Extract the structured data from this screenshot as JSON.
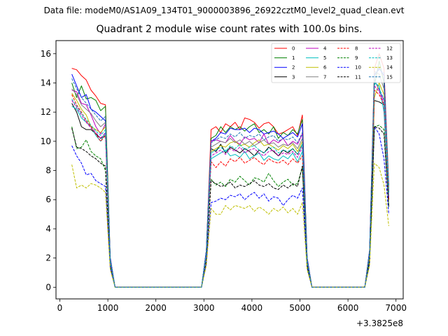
{
  "figure": {
    "suptitle": "Data file: modeM0/AS1A09_134T01_9000003896_26922cztM0_level2_quad_clean.evt"
  },
  "chart_data": {
    "type": "line",
    "title": "Quadrant 2 module wise count rates with 100.0s bins.",
    "xlabel": "",
    "ylabel": "",
    "x_offset_label": "+3.3825e8",
    "xlim": [
      -80,
      7150
    ],
    "ylim": [
      -0.8,
      16.9
    ],
    "x_ticks": [
      0,
      1000,
      2000,
      3000,
      4000,
      5000,
      6000,
      7000
    ],
    "x_tick_labels": [
      "0",
      "1000",
      "2000",
      "3000",
      "4000",
      "5000",
      "6000",
      "7000"
    ],
    "y_ticks": [
      0,
      2,
      4,
      6,
      8,
      10,
      12,
      14,
      16
    ],
    "y_tick_labels": [
      "0",
      "2",
      "4",
      "6",
      "8",
      "10",
      "12",
      "14",
      "16"
    ],
    "legend_position": "top-right",
    "legend_columns": 4,
    "x": [
      250,
      350,
      450,
      550,
      650,
      750,
      850,
      950,
      1050,
      1150,
      2950,
      3050,
      3150,
      3250,
      3350,
      3450,
      3550,
      3650,
      3750,
      3850,
      3950,
      4050,
      4150,
      4250,
      4350,
      4450,
      4550,
      4650,
      4750,
      4850,
      4950,
      5050,
      5150,
      5250,
      6350,
      6450,
      6550,
      6650,
      6750,
      6850
    ],
    "series": [
      {
        "name": "0",
        "color": "#ff0000",
        "dashed": false,
        "values": [
          15.0,
          14.9,
          14.5,
          14.2,
          13.5,
          13.1,
          12.6,
          12.5,
          2.0,
          0.0,
          0.0,
          2.5,
          10.8,
          11.0,
          10.6,
          11.2,
          11.0,
          11.3,
          10.8,
          11.6,
          11.5,
          11.3,
          10.9,
          11.2,
          11.3,
          11.0,
          10.5,
          10.6,
          10.8,
          11.0,
          10.4,
          11.8,
          2.0,
          0.0,
          0.0,
          2.5,
          15.0,
          16.0,
          15.0,
          7.0
        ]
      },
      {
        "name": "1",
        "color": "#008000",
        "dashed": false,
        "values": [
          14.0,
          13.0,
          13.8,
          12.9,
          13.0,
          12.8,
          12.1,
          12.4,
          2.0,
          0.0,
          0.0,
          2.5,
          10.2,
          10.4,
          11.0,
          10.6,
          11.0,
          10.8,
          11.0,
          10.7,
          11.0,
          11.2,
          10.6,
          10.8,
          10.5,
          11.0,
          10.2,
          10.6,
          10.4,
          10.8,
          10.5,
          11.5,
          2.0,
          0.0,
          0.0,
          2.5,
          13.8,
          15.5,
          14.0,
          6.8
        ]
      },
      {
        "name": "2",
        "color": "#0000ff",
        "dashed": false,
        "values": [
          14.6,
          13.8,
          13.0,
          13.2,
          12.2,
          12.0,
          11.7,
          11.4,
          2.0,
          0.0,
          0.0,
          2.5,
          10.0,
          10.2,
          10.6,
          10.5,
          10.9,
          10.8,
          10.8,
          10.9,
          10.6,
          10.9,
          10.8,
          10.5,
          10.6,
          10.7,
          10.5,
          10.2,
          10.4,
          10.6,
          10.3,
          11.2,
          2.0,
          0.0,
          0.0,
          2.5,
          14.5,
          15.0,
          14.5,
          6.5
        ]
      },
      {
        "name": "3",
        "color": "#000000",
        "dashed": false,
        "values": [
          12.6,
          12.0,
          11.0,
          10.8,
          10.8,
          10.5,
          10.2,
          10.4,
          1.8,
          0.0,
          0.0,
          2.2,
          9.5,
          9.3,
          9.8,
          9.2,
          9.6,
          9.4,
          9.2,
          9.5,
          9.3,
          9.0,
          9.4,
          9.2,
          9.6,
          9.3,
          9.0,
          9.4,
          9.2,
          9.5,
          9.1,
          9.8,
          1.8,
          0.0,
          0.0,
          2.2,
          12.8,
          12.7,
          12.5,
          6.5
        ]
      },
      {
        "name": "4",
        "color": "#bf00bf",
        "dashed": false,
        "values": [
          13.5,
          13.4,
          12.6,
          12.5,
          11.8,
          11.0,
          10.5,
          11.2,
          1.8,
          0.0,
          0.0,
          2.3,
          10.0,
          10.1,
          10.0,
          9.9,
          10.4,
          10.0,
          9.8,
          10.3,
          10.1,
          10.2,
          9.9,
          10.5,
          9.8,
          10.1,
          9.9,
          10.2,
          9.7,
          10.0,
          9.8,
          10.5,
          1.8,
          0.0,
          0.0,
          2.3,
          14.2,
          13.5,
          12.8,
          6.2
        ]
      },
      {
        "name": "5",
        "color": "#00bfbf",
        "dashed": false,
        "values": [
          12.4,
          12.2,
          11.6,
          11.3,
          11.0,
          10.4,
          10.0,
          10.6,
          1.7,
          0.0,
          0.0,
          2.2,
          8.8,
          9.0,
          9.2,
          9.4,
          9.0,
          9.1,
          8.9,
          9.3,
          8.8,
          9.0,
          9.2,
          8.7,
          9.0,
          8.8,
          8.7,
          9.0,
          8.8,
          9.2,
          8.6,
          9.3,
          1.7,
          0.0,
          0.0,
          2.2,
          14.0,
          13.8,
          12.0,
          6.0
        ]
      },
      {
        "name": "6",
        "color": "#bfbf00",
        "dashed": false,
        "values": [
          13.3,
          12.8,
          12.2,
          11.8,
          11.0,
          10.8,
          10.6,
          11.0,
          1.8,
          0.0,
          0.0,
          2.3,
          9.3,
          9.5,
          9.7,
          9.6,
          9.9,
          10.0,
          9.7,
          9.8,
          9.6,
          9.9,
          10.1,
          9.7,
          9.8,
          9.6,
          9.4,
          9.7,
          9.5,
          9.8,
          9.3,
          10.0,
          1.8,
          0.0,
          0.0,
          2.3,
          13.0,
          14.0,
          13.2,
          6.8
        ]
      },
      {
        "name": "7",
        "color": "#808080",
        "dashed": false,
        "values": [
          13.6,
          13.2,
          12.5,
          12.2,
          11.9,
          11.4,
          11.0,
          11.3,
          1.8,
          0.0,
          0.0,
          2.3,
          9.6,
          9.8,
          10.0,
          9.9,
          10.2,
          9.9,
          10.1,
          9.8,
          10.0,
          9.7,
          9.9,
          10.1,
          9.8,
          9.9,
          9.6,
          9.8,
          9.7,
          9.9,
          9.5,
          10.2,
          1.8,
          0.0,
          0.0,
          2.3,
          14.8,
          14.6,
          13.6,
          6.6
        ]
      },
      {
        "name": "8",
        "color": "#ff0000",
        "dashed": true,
        "values": [
          13.2,
          12.5,
          12.0,
          11.4,
          11.0,
          10.5,
          10.0,
          10.4,
          1.7,
          0.0,
          0.0,
          2.2,
          8.6,
          8.2,
          8.6,
          8.3,
          8.8,
          8.6,
          8.9,
          8.5,
          8.7,
          8.9,
          8.6,
          8.4,
          8.8,
          8.6,
          8.5,
          8.7,
          8.4,
          8.8,
          8.5,
          9.0,
          1.7,
          0.0,
          0.0,
          2.2,
          13.5,
          13.2,
          12.5,
          6.0
        ]
      },
      {
        "name": "9",
        "color": "#008000",
        "dashed": true,
        "values": [
          11.0,
          9.5,
          9.6,
          10.1,
          9.3,
          9.0,
          8.8,
          8.0,
          1.5,
          0.0,
          0.0,
          1.8,
          7.4,
          7.0,
          7.2,
          6.9,
          7.4,
          7.2,
          7.6,
          7.3,
          7.0,
          7.5,
          7.4,
          7.2,
          7.8,
          7.3,
          6.9,
          7.2,
          7.4,
          7.0,
          7.1,
          8.2,
          1.5,
          0.0,
          0.0,
          1.8,
          11.0,
          11.1,
          10.8,
          5.5
        ]
      },
      {
        "name": "10",
        "color": "#0000ff",
        "dashed": true,
        "values": [
          9.7,
          9.0,
          8.5,
          7.7,
          7.8,
          7.3,
          7.1,
          6.9,
          1.3,
          0.0,
          0.0,
          1.6,
          5.8,
          5.9,
          6.1,
          6.0,
          6.3,
          6.2,
          6.4,
          6.0,
          6.3,
          6.5,
          6.1,
          6.4,
          5.9,
          6.2,
          6.1,
          5.6,
          6.0,
          6.3,
          6.1,
          6.8,
          1.3,
          0.0,
          0.0,
          1.6,
          11.0,
          10.5,
          8.8,
          5.0
        ]
      },
      {
        "name": "11",
        "color": "#000000",
        "dashed": true,
        "values": [
          10.9,
          9.6,
          9.5,
          9.3,
          9.0,
          8.8,
          8.5,
          8.3,
          1.5,
          0.0,
          0.0,
          1.8,
          7.3,
          7.1,
          6.9,
          7.0,
          7.2,
          6.8,
          7.0,
          6.9,
          7.1,
          7.3,
          7.0,
          6.9,
          7.1,
          6.8,
          6.7,
          7.0,
          6.8,
          7.1,
          6.9,
          8.3,
          1.5,
          0.0,
          0.0,
          1.8,
          11.0,
          10.9,
          10.5,
          5.5
        ]
      },
      {
        "name": "12",
        "color": "#bf00bf",
        "dashed": true,
        "values": [
          12.8,
          12.3,
          11.8,
          11.3,
          10.9,
          10.6,
          10.2,
          10.6,
          1.7,
          0.0,
          0.0,
          2.2,
          9.0,
          9.2,
          9.4,
          9.1,
          9.5,
          9.3,
          9.6,
          9.2,
          9.4,
          9.5,
          9.2,
          9.0,
          9.3,
          9.4,
          9.0,
          9.2,
          9.1,
          9.3,
          8.9,
          9.6,
          1.7,
          0.0,
          0.0,
          2.2,
          13.8,
          13.4,
          12.6,
          6.1
        ]
      },
      {
        "name": "13",
        "color": "#00bfbf",
        "dashed": true,
        "values": [
          12.9,
          12.4,
          11.9,
          11.5,
          11.1,
          10.7,
          10.4,
          10.8,
          1.7,
          0.0,
          0.0,
          2.2,
          9.2,
          9.4,
          9.6,
          9.3,
          9.7,
          9.5,
          9.8,
          9.4,
          9.6,
          9.7,
          9.4,
          9.2,
          9.5,
          9.6,
          9.2,
          9.4,
          9.3,
          9.5,
          9.1,
          9.8,
          1.7,
          0.0,
          0.0,
          2.2,
          14.2,
          13.6,
          12.9,
          6.3
        ]
      },
      {
        "name": "14",
        "color": "#bfbf00",
        "dashed": true,
        "values": [
          8.4,
          6.8,
          7.0,
          6.8,
          7.1,
          7.0,
          6.8,
          6.5,
          1.2,
          0.0,
          0.0,
          1.5,
          5.4,
          5.0,
          5.0,
          5.6,
          5.3,
          5.6,
          5.5,
          5.4,
          5.6,
          5.2,
          5.5,
          5.3,
          5.0,
          5.4,
          5.2,
          5.5,
          5.1,
          5.4,
          5.0,
          5.8,
          1.2,
          0.0,
          0.0,
          1.5,
          8.5,
          8.2,
          7.0,
          4.2
        ]
      },
      {
        "name": "15",
        "color": "#1f77b4",
        "dashed": true,
        "values": [
          14.3,
          13.6,
          13.0,
          12.6,
          12.2,
          11.8,
          11.4,
          11.7,
          1.9,
          0.0,
          0.0,
          2.4,
          9.9,
          10.1,
          10.3,
          10.2,
          10.5,
          10.3,
          10.6,
          10.2,
          10.4,
          10.3,
          10.5,
          10.1,
          10.3,
          10.4,
          10.0,
          10.2,
          10.1,
          10.3,
          9.9,
          10.6,
          1.9,
          0.0,
          0.0,
          2.4,
          14.6,
          14.9,
          14.7,
          6.9
        ]
      }
    ]
  }
}
